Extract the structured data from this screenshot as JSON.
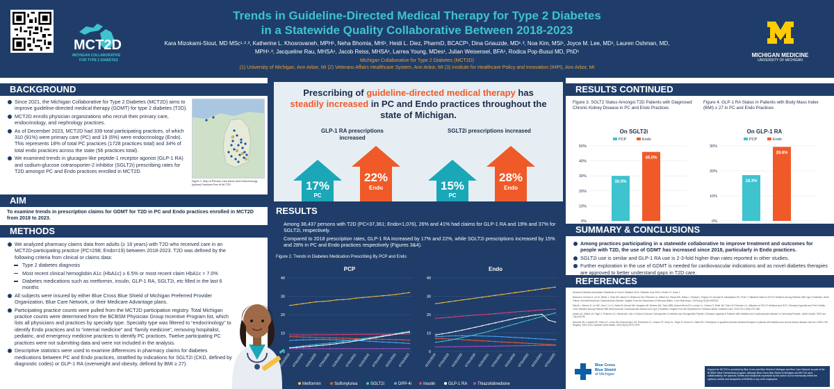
{
  "header": {
    "title_line1": "Trends in Guideline-Directed Medical Therapy for Type 2 Diabetes",
    "title_line2": "in a Statewide Quality Collaborative Between 2018-2023",
    "authors": "Kara Mizokami-Stout, MD MSc¹˒²˒³, Katherine L. Khosrovaneh, MPH¹, Neha Bhomia, MHI¹, Heidi L. Diez, PharmD, BCACP¹, Dina Griauzde, MD¹˒³, Noa Kim, MSI¹, Joyce M. Lee, MD¹, Lauren Oshman, MD, MPH¹˒³, Jacqueline Rau, MHSA¹, Jacob Reiss, MHSA¹, Larrea Young, MDes¹, Julian Weisensel, BFA¹, Rodica Pop-Busui MD, PhD¹",
    "org": "Michigan Collaborative for Type 2 Diabetes (MCT2D)",
    "affiliations": "(1) University of Michigan, Ann Arbor, MI (2) Veterans Affairs Healthcare System, Ann Arbor, MI (3) Institute for Healthcare Policy and Innovation (IHPI), Ann Arbor, MI",
    "mct2d_name": "MCT2D",
    "mct2d_sub1": "MICHIGAN COLLABORATIVE",
    "mct2d_sub2": "FOR TYPE 2 DIABETES",
    "umich_name": "MICHIGAN MEDICINE",
    "umich_sub": "UNIVERSITY OF MICHIGAN"
  },
  "background": {
    "heading": "BACKGROUND",
    "bullets": [
      "Since 2021, the Michigan Collaborative for Type 2 Diabetes (MCT2D) aims to improve guideline-directed medical therapy (GDMT) for type 2 diabetes (T2D).",
      "MCT2D enrolls physician organizations who recruit their primary care, endocrinology, and nephrology practices.",
      "As of December 2023, MCT2D had 339 total participating practices, of which 310 (91%) were primary care (PC) and 19 (6%) were endocrinology (Endo). This represents 18% of total PC practices (1728 practices total) and 34% of total endo practices across the state (56 practices total).",
      "We examined trends in glucagon-like peptide-1 receptor agonist (GLP-1 RA) and sodium-glucose cotransporter-2 inhibitor (SGLT2i) prescribing rates for T2D amongst PC and Endo practices enrolled in MCT2D."
    ],
    "map_caption": "Figure 1. Map of Primary Care (blue) and Endocrinology (yellow) Practices Part of MCT2D"
  },
  "aim": {
    "heading": "AIM",
    "text": "To examine trends in prescription claims for GDMT for T2D in PC and Endo practices enrolled in MCT2D from 2018 to 2023."
  },
  "methods": {
    "heading": "METHODS",
    "b1": "We analyzed pharmacy claims data from adults (≥ 18 years) with T2D who received care in an MCT2D-participating practice (PC=298; Endo=19) between 2018-2023. T2D was defined by the following criteria from clinical or claims data:",
    "sub": [
      "Type 2 diabetes diagnosis",
      "Most recent clinical hemoglobin A1c (HbA1c) ≥ 6.5% or most recent claim HbA1c > 7.0%",
      "Diabetes medications such as metformin, insulin, GLP-1 RA, SGLT2i, etc filled in the last 6 months"
    ],
    "b2": "All subjects were insured by either Blue Cross Blue Shield of Michigan Preferred Provider Organization, Blue Care Network, or their Medicare Advantage plans.",
    "b3": "Participating practice counts were pulled from the MCT2D participation registry. Total Michigan practice counts were determined from the BCBSM Physician Group Incentive Program list, which lists all physicians and practices by specialty type. Specialty type was filtered to “endocrinology” to identify Endo practices and to “internal medicine” and “family medicine”, removing hospitalist, pediatric, and emergency medicine practices to identify PC practices. Twelve participating PC practices were not submitting data and were not included in the analysis.",
    "b4": "Descriptive statistics were used to examine differences in pharmacy claims for diabetes medications between PC and Endo practices, stratified by indications for SGLT2i (CKD, defined by diagnostic codes) or GLP-1 RA (overweight and obesity, defined by BMI ≥ 27)."
  },
  "infographic": {
    "pre": "Prescribing of ",
    "hl1": "guideline-directed medical therapy",
    "mid": " has ",
    "hl2": "steadily increased",
    "post": " in PC and Endo practices throughout the state of Michigan.",
    "glp_title": "GLP-1 RA prescriptions increased",
    "sglt_title": "SGLT2i prescriptions increased",
    "glp_pc": "17%",
    "glp_endo": "22%",
    "sglt_pc": "15%",
    "sglt_endo": "28%",
    "pc_label": "PC",
    "endo_label": "Endo"
  },
  "results": {
    "heading": "RESULTS",
    "b1": "Among 38,437 persons with T2D (PC=37,361; Endo=1,076), 26% and 41% had claims for GLP-1 RA and 19% and 37% for SGLT2i, respectively.",
    "b2": "Compared to 2018 prescription rates, GLP-1 RA increased by 17% and 22%, while SGLT2i prescriptions increased by 15% and 28% in PC and Endo practices respectively (Figures 3&4).",
    "fig2_caption": "Figure 2. Trends in Diabetes Medication Prescribing By PCP and Endo"
  },
  "results_continued": {
    "heading": "RESULTS CONTINUED",
    "fig3_caption": "Figure 3. SGLT2 Status Amongst T2D Patients with Diagnosed Chronic Kidney Disease in PC and Endo Practices",
    "fig4_caption": "Figure 4. GLP-1 RA Status in Patients with Body Mass Index (BMI) ≥ 27 in PC and Endo Practices"
  },
  "summary": {
    "heading": "SUMMARY & CONCLUSIONS",
    "b1": "Among practices participating in a statewide collaborative to improve treatment and outcomes for people with T2D, the use of GDMT has increased since 2018, particularly in Endo practices.",
    "b2": "SGLT2i use is similar and GLP-1 RA use is 2-3-fold higher than rates reported in other studies.",
    "b3": "Further exploration in the use of GDMT is needed for cardiovascular indications and as novel diabetes therapies are approved to better understand gaps in T2D care."
  },
  "references": {
    "heading": "REFERENCES",
    "r1": "American Diabetes Association Standards of Care in Diabetes 2024. Diabetes Care 2024; Volume 47, Issue 1.",
    "r2": "Rasouli A, Kenney H, Lin M, Weller J, Khan MT, Narnet V, Dellamora GM, Petersen LA, Walker AJ, Kissen MK, Rafan J, Oherpal L, Rogers JG, Bochart B, Nararjathan SS, Pruet T. Utilization Rates of SGLT2 Inhibitors Among Patients With Type 2 Diabetes, Heart Failure, and Atherosclerotic Cardiovascular Disease: Insights From the Department of Veterans Affairs. J Am Heart Assoc. 2023 Aug;12(15):e029282.",
    "r3": "Melchi L, Benner D, Lin ME, Gao C, Lin X, Nahid M, Ahmed AM, Vaughan AB, Methew MA, Tortu MBB, Arsenei-Mens SU, Lennon LL, Chavez S, Butte JM, Orbe LM, Petersen LA. Utilization of SGLT2 Inhibitors and GLP-1 Receptor Agonists and Their Facility-Level Variation Among Patients With Atherosclerotic Cardiovascular Disease and Type 2 Diabetes: Insights From the Department of Veterans Affairs. Diabetes Care. 2022 Feb 1;45(2):372-380.",
    "r4": "Adams AJ, Dillard JA, Page C, Peterson DJ, Handel AM. Use of Sodium-Glucose Cotransporter 2 Inhibitors and Glucagonlike Peptide-1 Receptor Agonists in Patients With Diabetes and Cardiovascular Disease in Community Practice. JAMA Cardiol. 2023 Jan 1;8(1):89-95.",
    "r5": "Nicholas SB, Lunable RR, Hicks VC, Jones SM, Brennemann LM, Rosenfeld LS, Chabon ST, Reay GL, Singh R, Norris KC, Sattui SE. Prescription of guideline-directed medical therapies in patients with diabetes and chronic kidney disease from the CURE-CKD Registry, 2019-2020. Diabetes Obes Metab. 2023;25(10):2970-2979.",
    "bcbs_name1": "Blue Cross",
    "bcbs_name2": "Blue Shield",
    "bcbs_name3": "of Michigan",
    "support": "Support for MCT2D is provided by Blue Cross and Blue Shield of Michigan and Blue Care Network as part of the BCBSM Value Partnerships program. Although Blue Cross Blue Shield of Michigan and MCT2D work collaboratively, the opinions, beliefs and viewpoints expressed by the author do not necessarily reflect the opinions, beliefs and viewpoints of BCBSM or any of its employees."
  },
  "colors": {
    "navy": "#1f3d68",
    "teal": "#3ec3cf",
    "orange": "#f05a28",
    "pc_bar": "#3ec3cf",
    "endo_bar": "#f05a28"
  },
  "chart_data": [
    {
      "type": "bar",
      "title": "On SGLT2i",
      "categories": [
        "PCP",
        "Endo"
      ],
      "values": [
        30.0,
        46.0
      ],
      "value_labels": [
        "30.0%",
        "46.0%"
      ],
      "ylim": [
        0,
        50
      ],
      "yticks": [
        "0%",
        "10%",
        "20%",
        "30%",
        "40%",
        "50%"
      ],
      "legend": [
        "PCP",
        "Endo"
      ]
    },
    {
      "type": "bar",
      "title": "On GLP-1 RA",
      "categories": [
        "PCP",
        "Endo"
      ],
      "values": [
        18.3,
        29.6
      ],
      "value_labels": [
        "18.3%",
        "29.6%"
      ],
      "ylim": [
        0,
        30
      ],
      "yticks": [
        "0%",
        "10%",
        "20%",
        "30%"
      ],
      "legend": [
        "PCP",
        "Endo"
      ]
    },
    {
      "type": "line",
      "title": "PCP",
      "ylim": [
        0,
        40
      ],
      "yticks": [
        "0",
        "10",
        "20",
        "30",
        "40"
      ],
      "x": [
        "01/31/2019",
        "04/30/2019",
        "07/31/2019",
        "10/31/2019",
        "01/31/2020",
        "04/30/2020",
        "07/31/2020",
        "10/31/2020",
        "01/31/2021",
        "04/30/2021",
        "07/31/2021",
        "10/31/2021",
        "01/31/2022",
        "04/30/2022",
        "07/31/2022",
        "10/31/2022",
        "01/31/2023",
        "04/30/2023",
        "07/31/2023"
      ],
      "xtick_labels": [
        "01/31/2019",
        "07/31/2019",
        "01/31/2020",
        "07/31/2020",
        "01/31/2021",
        "07/31/2021",
        "01/31/2022",
        "07/31/2022",
        "01/31/2023",
        "07/31/2023"
      ],
      "series": [
        {
          "name": "Metformin",
          "color": "#f5c040",
          "values": [
            25,
            25.5,
            26,
            26.5,
            27,
            27.2,
            27.5,
            28,
            28.2,
            28.5,
            29,
            29.3,
            29.6,
            30,
            30.3,
            30.6,
            31,
            31.5,
            32
          ]
        },
        {
          "name": "Sulfonylurea",
          "color": "#f05a28",
          "values": [
            8,
            8,
            7.8,
            7.8,
            7.6,
            7.5,
            7.4,
            7.3,
            7.2,
            7.1,
            7,
            6.9,
            6.8,
            6.7,
            6.6,
            6.5,
            6.4,
            6.3,
            6.2
          ]
        },
        {
          "name": "SGLT2i",
          "color": "#3ec3cf",
          "values": [
            2,
            2.5,
            3,
            3.4,
            3.8,
            4.2,
            4.6,
            5,
            5.5,
            6,
            6.5,
            7,
            7.5,
            8,
            8.6,
            9.2,
            9.8,
            10.4,
            11
          ]
        },
        {
          "name": "DPP-4i",
          "color": "#4aa8ff",
          "values": [
            6,
            6.2,
            6.3,
            6.4,
            6.5,
            6.5,
            6.4,
            6.3,
            6.2,
            6.1,
            6,
            5.8,
            5.6,
            5.4,
            5.2,
            5,
            4.8,
            4.6,
            4.4
          ]
        },
        {
          "name": "Insulin",
          "color": "#e0407a",
          "values": [
            9,
            9,
            9,
            9,
            9.1,
            9.1,
            9.1,
            9.2,
            9.2,
            9.2,
            9.3,
            9.3,
            9.3,
            9.4,
            9.4,
            9.4,
            9.5,
            9.5,
            9.5
          ]
        },
        {
          "name": "GLP-1 RA",
          "color": "#ffffff",
          "values": [
            2,
            2.2,
            2.5,
            2.8,
            3.1,
            3.4,
            3.8,
            4.2,
            4.7,
            5.2,
            5.8,
            6.4,
            7,
            7.6,
            8.2,
            8.8,
            9.4,
            10,
            10.5
          ]
        },
        {
          "name": "Thiazolidinedione",
          "color": "#b04ad0",
          "values": [
            1.5,
            1.5,
            1.5,
            1.5,
            1.5,
            1.5,
            1.5,
            1.5,
            1.5,
            1.5,
            1.5,
            1.5,
            1.5,
            1.5,
            1.5,
            1.5,
            1.5,
            1.5,
            1.5
          ]
        }
      ]
    },
    {
      "type": "line",
      "title": "Endo",
      "ylim": [
        0,
        40
      ],
      "yticks": [
        "0",
        "10",
        "20",
        "30",
        "40"
      ],
      "x": [
        "01/31/2019",
        "04/30/2019",
        "07/31/2019",
        "10/31/2019",
        "01/31/2020",
        "04/30/2020",
        "07/31/2020",
        "10/31/2020",
        "01/31/2021",
        "04/30/2021",
        "07/31/2021",
        "10/31/2021",
        "01/31/2022",
        "04/30/2022",
        "07/31/2022",
        "10/31/2022",
        "01/31/2023",
        "04/30/2023",
        "07/31/2023"
      ],
      "xtick_labels": [
        "01/31/2019",
        "07/31/2019",
        "01/31/2020",
        "07/31/2020",
        "01/31/2021",
        "07/31/2021",
        "01/31/2022",
        "07/31/2022",
        "01/31/2023",
        "07/31/2023"
      ],
      "series": [
        {
          "name": "Metformin",
          "color": "#f5c040",
          "values": [
            26,
            26.5,
            27,
            27.5,
            28,
            28.5,
            29,
            29.5,
            30,
            30.5,
            31,
            31.5,
            32,
            32.5,
            33,
            33.5,
            34,
            34.5,
            35
          ]
        },
        {
          "name": "Sulfonylurea",
          "color": "#f05a28",
          "values": [
            7,
            7,
            6.8,
            6.6,
            6.4,
            6.2,
            6,
            5.8,
            5.6,
            5.4,
            5.2,
            5,
            4.8,
            4.6,
            4.4,
            4.2,
            4,
            3.8,
            3.6
          ]
        },
        {
          "name": "SGLT2i",
          "color": "#3ec3cf",
          "values": [
            5,
            5.5,
            6,
            6.8,
            7.6,
            8.4,
            9.2,
            10,
            11,
            12,
            13,
            14,
            15,
            16,
            17,
            18,
            19,
            20,
            21
          ]
        },
        {
          "name": "DPP-4i",
          "color": "#4aa8ff",
          "values": [
            8,
            8.2,
            8.4,
            8.5,
            8.6,
            8.6,
            8.5,
            8.4,
            8.3,
            8.2,
            8,
            7.8,
            7.6,
            7.4,
            7.2,
            7,
            6.8,
            6.6,
            6.4
          ]
        },
        {
          "name": "Insulin",
          "color": "#e0407a",
          "values": [
            18,
            18.3,
            18.6,
            18.9,
            19.2,
            19.5,
            19.8,
            20,
            20.3,
            20.6,
            20.9,
            21.2,
            21.5,
            21.8,
            22,
            22.3,
            22.6,
            22.9,
            23
          ]
        },
        {
          "name": "GLP-1 RA",
          "color": "#ffffff",
          "values": [
            9,
            9.6,
            10.2,
            10.9,
            11.6,
            12.4,
            13.2,
            14,
            14.8,
            15.6,
            16.4,
            17.2,
            18,
            18.6,
            19.2,
            19.8,
            20.2,
            17,
            16
          ]
        },
        {
          "name": "Thiazolidinedione",
          "color": "#b04ad0",
          "values": [
            2.5,
            2.5,
            2.6,
            2.6,
            2.7,
            2.7,
            2.8,
            2.8,
            2.9,
            2.9,
            3,
            3,
            3.1,
            3.1,
            3.2,
            3.2,
            3.3,
            3.3,
            3.4
          ]
        }
      ]
    }
  ]
}
